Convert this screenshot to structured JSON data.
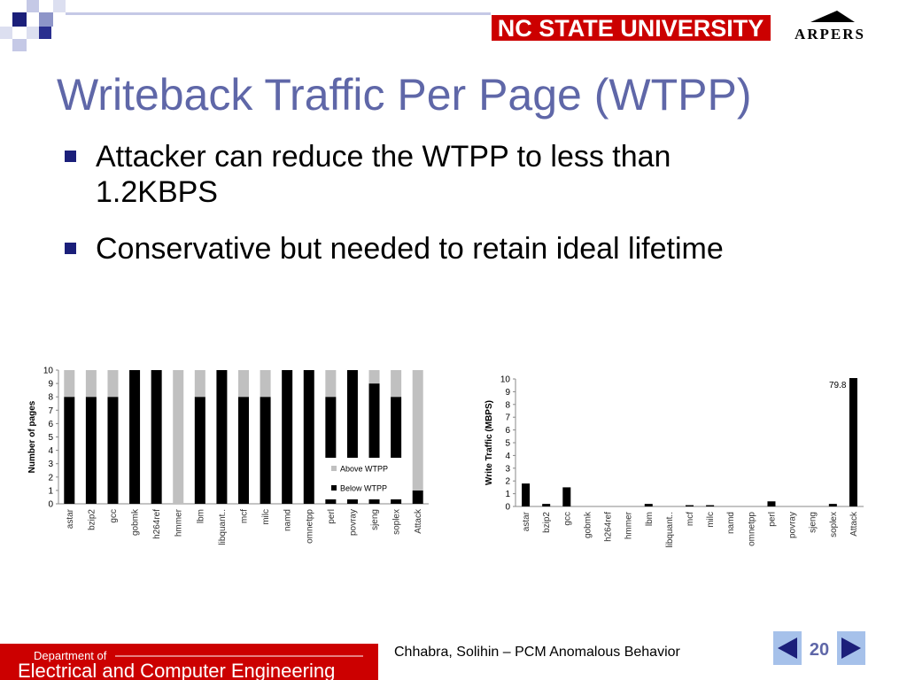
{
  "header": {
    "logo": "NC STATE UNIVERSITY",
    "lab": "ARPERS"
  },
  "title": "Writeback Traffic Per Page (WTPP)",
  "bullets": [
    "Attacker can reduce the WTPP to less than 1.2KBPS",
    "Conservative but needed to retain ideal lifetime"
  ],
  "footer": {
    "dept_small": "Department of",
    "dept": "Electrical and Computer Engineering",
    "citation": "Chhabra, Solihin – PCM Anomalous Behavior",
    "page": "20"
  },
  "chart_data": [
    {
      "type": "bar",
      "stacked": true,
      "y_label": "Number of pages",
      "categories": [
        "astar",
        "bzip2",
        "gcc",
        "gobmk",
        "h264ref",
        "hmmer",
        "lbm",
        "libquant..",
        "mcf",
        "milc",
        "namd",
        "omnetpp",
        "perl",
        "povray",
        "sjeng",
        "soplex",
        "Attack"
      ],
      "series": [
        {
          "name": "Below WTPP",
          "color": "#000000",
          "values": [
            8,
            8,
            8,
            10,
            10,
            0,
            8,
            10,
            8,
            8,
            10,
            10,
            8,
            10,
            9,
            8,
            1
          ]
        },
        {
          "name": "Above WTPP",
          "color": "#c0c0c0",
          "values": [
            2,
            2,
            2,
            0,
            0,
            10,
            2,
            0,
            2,
            2,
            0,
            0,
            2,
            0,
            1,
            2,
            9
          ]
        }
      ],
      "ylim": [
        0,
        10
      ],
      "yticks": [
        0,
        1,
        2,
        3,
        4,
        5,
        6,
        7,
        8,
        9,
        10
      ],
      "legend": "lower-right"
    },
    {
      "type": "bar",
      "y_label": "Write Traffic (MBPS)",
      "categories": [
        "astar",
        "bzip2",
        "gcc",
        "gobmk",
        "h264ref",
        "hmmer",
        "lbm",
        "libquant..",
        "mcf",
        "milc",
        "namd",
        "omnetpp",
        "perl",
        "povray",
        "sjeng",
        "soplex",
        "Attack"
      ],
      "values": [
        1.8,
        0.2,
        1.5,
        0,
        0,
        0,
        0.2,
        0,
        0.1,
        0.1,
        0,
        0,
        0.4,
        0,
        0,
        0.2,
        79.8
      ],
      "value_labels": [
        null,
        null,
        null,
        null,
        null,
        null,
        null,
        null,
        null,
        null,
        null,
        null,
        null,
        null,
        null,
        null,
        "79.8"
      ],
      "color": "#000000",
      "ylim": [
        0,
        10
      ],
      "yticks": [
        0,
        1,
        2,
        3,
        4,
        5,
        6,
        7,
        8,
        9,
        10
      ]
    }
  ]
}
